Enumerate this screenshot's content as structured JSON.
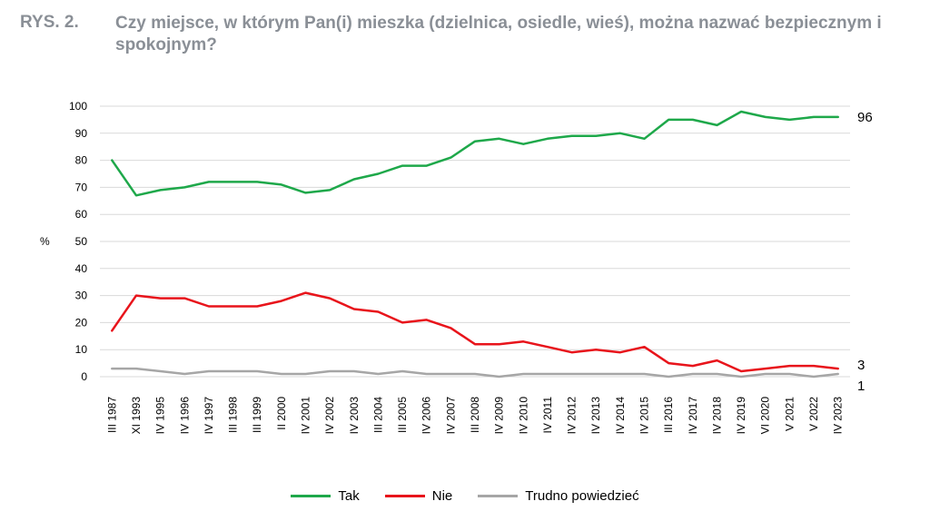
{
  "figure": {
    "label": "RYS. 2.",
    "title": "Czy miejsce, w którym Pan(i) mieszka (dzielnica, osiedle, wieś), można nazwać bezpiecznym i spokojnym?"
  },
  "colors": {
    "tak": "#1ea84a",
    "nie": "#e8141b",
    "trudno": "#a6a6a6",
    "grid": "#d9d9d9",
    "title": "#8a8f96"
  },
  "chart_data": {
    "type": "line",
    "title": "Czy miejsce, w którym Pan(i) mieszka (dzielnica, osiedle, wieś), można nazwać bezpiecznym i spokojnym?",
    "ylabel": "%",
    "xlabel": "",
    "ylim": [
      0,
      100
    ],
    "yticks": [
      0,
      10,
      20,
      30,
      40,
      50,
      60,
      70,
      80,
      90,
      100
    ],
    "grid": true,
    "legend_position": "bottom",
    "categories": [
      "III 1987",
      "XI 1993",
      "IV 1995",
      "IV 1996",
      "IV 1997",
      "III 1998",
      "III 1999",
      "II 2000",
      "IV 2001",
      "IV 2002",
      "IV 2003",
      "III 2004",
      "III 2005",
      "IV 2006",
      "IV 2007",
      "III 2008",
      "IV 2009",
      "IV 2010",
      "IV 2011",
      "IV 2012",
      "IV 2013",
      "IV 2014",
      "IV 2015",
      "III 2016",
      "IV 2017",
      "IV 2018",
      "IV 2019",
      "VI 2020",
      "V 2021",
      "V 2022",
      "IV 2023"
    ],
    "series": [
      {
        "name": "Tak",
        "color": "#1ea84a",
        "end_label": "96",
        "values": [
          80,
          67,
          69,
          70,
          72,
          72,
          72,
          71,
          68,
          69,
          73,
          75,
          78,
          78,
          81,
          87,
          88,
          86,
          88,
          89,
          89,
          90,
          88,
          95,
          95,
          93,
          98,
          96,
          95,
          96,
          96
        ]
      },
      {
        "name": "Nie",
        "color": "#e8141b",
        "end_label": "3",
        "values": [
          17,
          30,
          29,
          29,
          26,
          26,
          26,
          28,
          31,
          29,
          25,
          24,
          20,
          21,
          18,
          12,
          12,
          13,
          11,
          9,
          10,
          9,
          11,
          5,
          4,
          6,
          2,
          3,
          4,
          4,
          3
        ]
      },
      {
        "name": "Trudno powiedzieć",
        "color": "#a6a6a6",
        "end_label": "1",
        "values": [
          3,
          3,
          2,
          1,
          2,
          2,
          2,
          1,
          1,
          2,
          2,
          1,
          2,
          1,
          1,
          1,
          0,
          1,
          1,
          1,
          1,
          1,
          1,
          0,
          1,
          1,
          0,
          1,
          1,
          0,
          1
        ]
      }
    ]
  }
}
